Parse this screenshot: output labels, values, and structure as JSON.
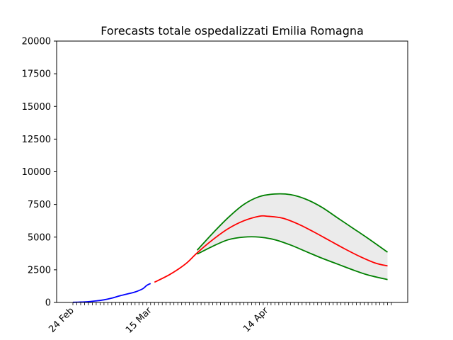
{
  "chart_data": {
    "type": "line",
    "title": "Forecasts totale ospedalizzati Emilia Romagna",
    "xlabel": "",
    "ylabel": "",
    "x_axis": {
      "type": "date",
      "start": "2020-02-24",
      "end": "2020-05-16",
      "tick_labels": [
        {
          "date": "2020-02-24",
          "label": "24 Feb"
        },
        {
          "date": "2020-03-15",
          "label": "15 Mar"
        },
        {
          "date": "2020-04-14",
          "label": "14 Apr"
        }
      ]
    },
    "ylim": [
      0,
      20000
    ],
    "yticks": [
      0,
      2500,
      5000,
      7500,
      10000,
      12500,
      15000,
      17500,
      20000
    ],
    "grid": false,
    "legend": "none",
    "colors": {
      "observed": "#0000ff",
      "forecast": "#ff0000",
      "bounds": "#008000",
      "band": "#ebebeb"
    },
    "series": [
      {
        "kind": "observed",
        "color": "#0000ff",
        "points": [
          [
            "2020-02-24",
            10
          ],
          [
            "2020-02-26",
            30
          ],
          [
            "2020-02-28",
            60
          ],
          [
            "2020-03-01",
            120
          ],
          [
            "2020-03-03",
            200
          ],
          [
            "2020-03-05",
            330
          ],
          [
            "2020-03-07",
            500
          ],
          [
            "2020-03-09",
            650
          ],
          [
            "2020-03-11",
            800
          ],
          [
            "2020-03-13",
            1050
          ],
          [
            "2020-03-14",
            1300
          ],
          [
            "2020-03-15",
            1450
          ]
        ]
      },
      {
        "kind": "forecast",
        "color": "#ff0000",
        "points": [
          [
            "2020-03-16",
            1550
          ],
          [
            "2020-03-20",
            2150
          ],
          [
            "2020-03-24",
            2950
          ],
          [
            "2020-03-27",
            3800
          ],
          [
            "2020-03-31",
            4800
          ],
          [
            "2020-04-04",
            5650
          ],
          [
            "2020-04-08",
            6250
          ],
          [
            "2020-04-12",
            6600
          ],
          [
            "2020-04-14",
            6600
          ],
          [
            "2020-04-18",
            6450
          ],
          [
            "2020-04-22",
            6000
          ],
          [
            "2020-04-26",
            5400
          ],
          [
            "2020-04-30",
            4750
          ],
          [
            "2020-05-04",
            4100
          ],
          [
            "2020-05-08",
            3500
          ],
          [
            "2020-05-12",
            3000
          ],
          [
            "2020-05-15",
            2800
          ]
        ]
      },
      {
        "kind": "upper",
        "color": "#008000",
        "points": [
          [
            "2020-03-27",
            4000
          ],
          [
            "2020-03-31",
            5300
          ],
          [
            "2020-04-04",
            6500
          ],
          [
            "2020-04-08",
            7500
          ],
          [
            "2020-04-12",
            8100
          ],
          [
            "2020-04-16",
            8300
          ],
          [
            "2020-04-20",
            8250
          ],
          [
            "2020-04-24",
            7900
          ],
          [
            "2020-04-28",
            7300
          ],
          [
            "2020-05-02",
            6500
          ],
          [
            "2020-05-06",
            5700
          ],
          [
            "2020-05-10",
            4900
          ],
          [
            "2020-05-15",
            3850
          ]
        ]
      },
      {
        "kind": "lower",
        "color": "#008000",
        "points": [
          [
            "2020-03-27",
            3700
          ],
          [
            "2020-03-31",
            4300
          ],
          [
            "2020-04-04",
            4800
          ],
          [
            "2020-04-08",
            5000
          ],
          [
            "2020-04-12",
            5000
          ],
          [
            "2020-04-16",
            4800
          ],
          [
            "2020-04-20",
            4400
          ],
          [
            "2020-04-24",
            3900
          ],
          [
            "2020-04-28",
            3400
          ],
          [
            "2020-05-02",
            2950
          ],
          [
            "2020-05-06",
            2500
          ],
          [
            "2020-05-10",
            2100
          ],
          [
            "2020-05-15",
            1750
          ]
        ]
      }
    ]
  }
}
